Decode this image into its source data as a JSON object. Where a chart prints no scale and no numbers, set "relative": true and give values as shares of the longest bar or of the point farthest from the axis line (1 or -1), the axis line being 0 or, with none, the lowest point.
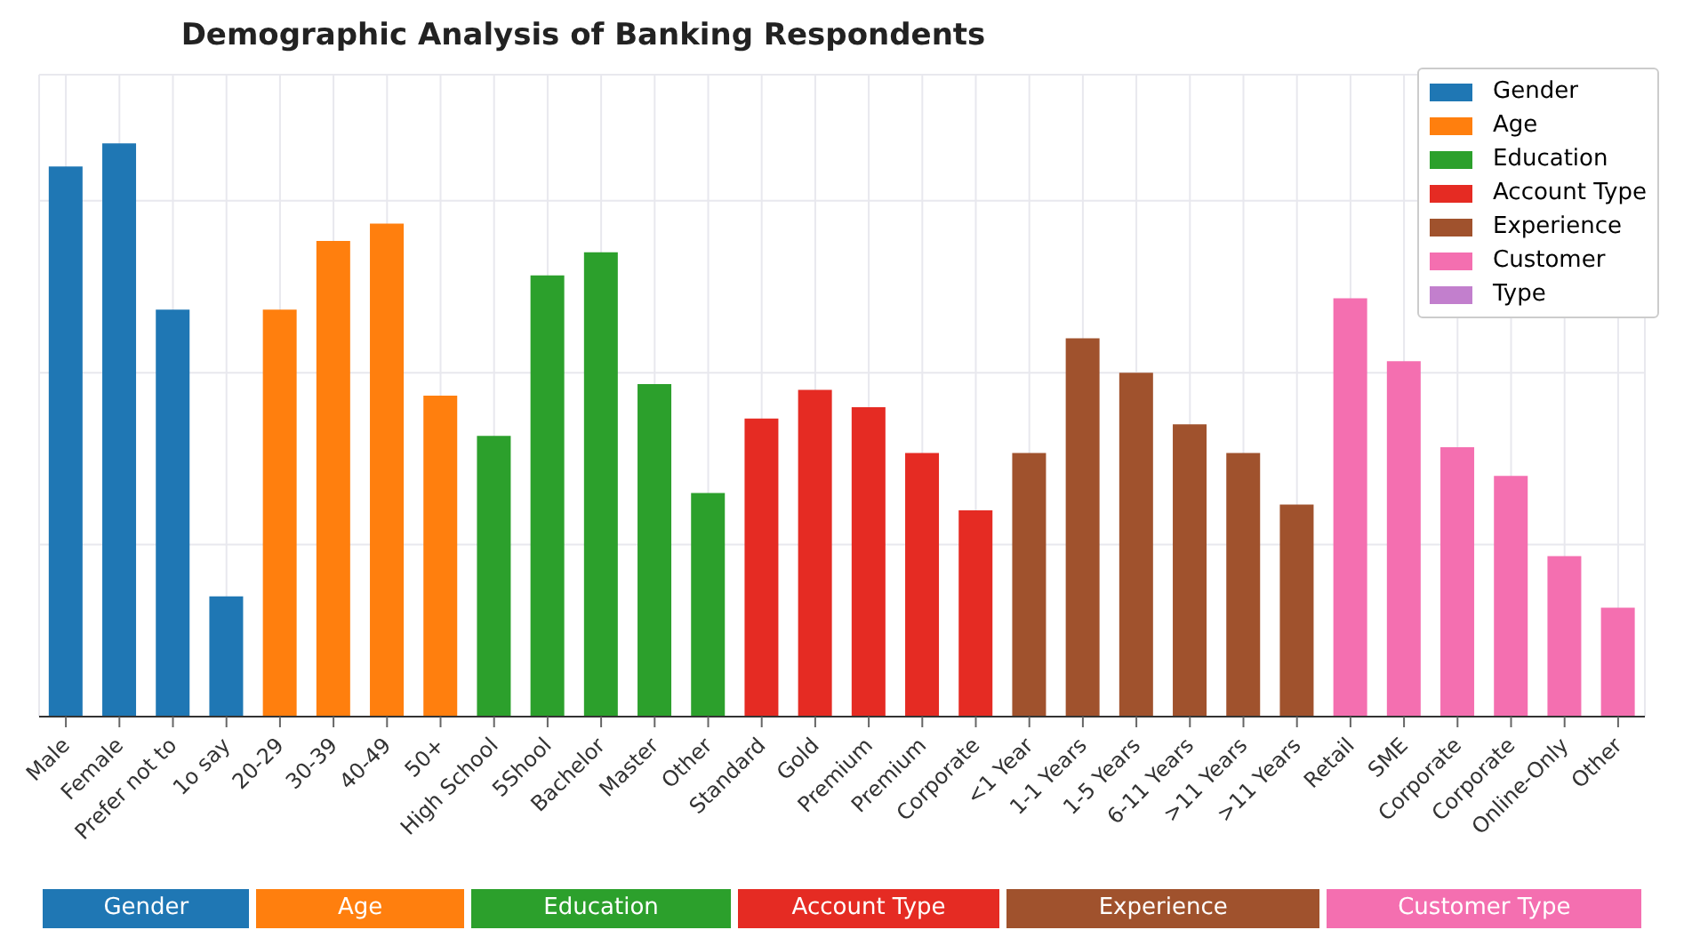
{
  "chart_data": {
    "type": "bar",
    "title": "Demographic Analysis of Banking Respondents",
    "relative": true,
    "grid": true,
    "legend": "top right",
    "categories": [
      "Male",
      "Female",
      "Prefer not to",
      "1o say",
      "20-29",
      "30-39",
      "40-49",
      "50+",
      "High School",
      "5Shool",
      "Bachelor",
      "Master",
      "Other",
      "Standard",
      "Gold",
      "Premium",
      "Premium",
      "Corporate",
      "<1 Year",
      "1-1 Years",
      "1-5 Years",
      "6-11 Years",
      ">11 Years",
      ">11 Years",
      "Retail",
      "SME",
      "Corporate",
      "Corporate",
      "Online-Only",
      "Other"
    ],
    "series": [
      {
        "name": "Gender",
        "color": "#1f77b4",
        "values": [
          0.96,
          1,
          0.71,
          0.21,
          null,
          null,
          null,
          null,
          null,
          null,
          null,
          null,
          null,
          null,
          null,
          null,
          null,
          null,
          null,
          null,
          null,
          null,
          null,
          null,
          null,
          null,
          null,
          null,
          null,
          null
        ]
      },
      {
        "name": "Age",
        "color": "#ff7f0e",
        "values": [
          null,
          null,
          null,
          null,
          0.71,
          0.83,
          0.86,
          0.56,
          null,
          null,
          null,
          null,
          null,
          null,
          null,
          null,
          null,
          null,
          null,
          null,
          null,
          null,
          null,
          null,
          null,
          null,
          null,
          null,
          null,
          null
        ]
      },
      {
        "name": "Education",
        "color": "#2ca02c",
        "values": [
          null,
          null,
          null,
          null,
          null,
          null,
          null,
          null,
          0.49,
          0.77,
          0.81,
          0.58,
          0.39,
          null,
          null,
          null,
          null,
          null,
          null,
          null,
          null,
          null,
          null,
          null,
          null,
          null,
          null,
          null,
          null,
          null
        ]
      },
      {
        "name": "Account Type",
        "color": "#e52b23",
        "values": [
          null,
          null,
          null,
          null,
          null,
          null,
          null,
          null,
          null,
          null,
          null,
          null,
          null,
          0.52,
          0.57,
          0.54,
          0.46,
          0.36,
          null,
          null,
          null,
          null,
          null,
          null,
          null,
          null,
          null,
          null,
          null,
          null
        ]
      },
      {
        "name": "Experience",
        "color": "#a0522d",
        "values": [
          null,
          null,
          null,
          null,
          null,
          null,
          null,
          null,
          null,
          null,
          null,
          null,
          null,
          null,
          null,
          null,
          null,
          null,
          0.46,
          0.66,
          0.6,
          0.51,
          0.46,
          0.37,
          null,
          null,
          null,
          null,
          null,
          null
        ]
      },
      {
        "name": "Customer",
        "color": "#f46fb0",
        "values": [
          null,
          null,
          null,
          null,
          null,
          null,
          null,
          null,
          null,
          null,
          null,
          null,
          null,
          null,
          null,
          null,
          null,
          null,
          null,
          null,
          null,
          null,
          null,
          null,
          0.73,
          0.62,
          0.47,
          0.42,
          0.28,
          0.19
        ]
      },
      {
        "name": "Type",
        "color": "#c27fcd",
        "values": [
          null,
          null,
          null,
          null,
          null,
          null,
          null,
          null,
          null,
          null,
          null,
          null,
          null,
          null,
          null,
          null,
          null,
          null,
          null,
          null,
          null,
          null,
          null,
          null,
          null,
          null,
          null,
          null,
          null,
          null
        ]
      }
    ],
    "annotations": [
      "Gender",
      "Age",
      "Education",
      "Account Type",
      "Experience",
      "Customer Type"
    ]
  }
}
